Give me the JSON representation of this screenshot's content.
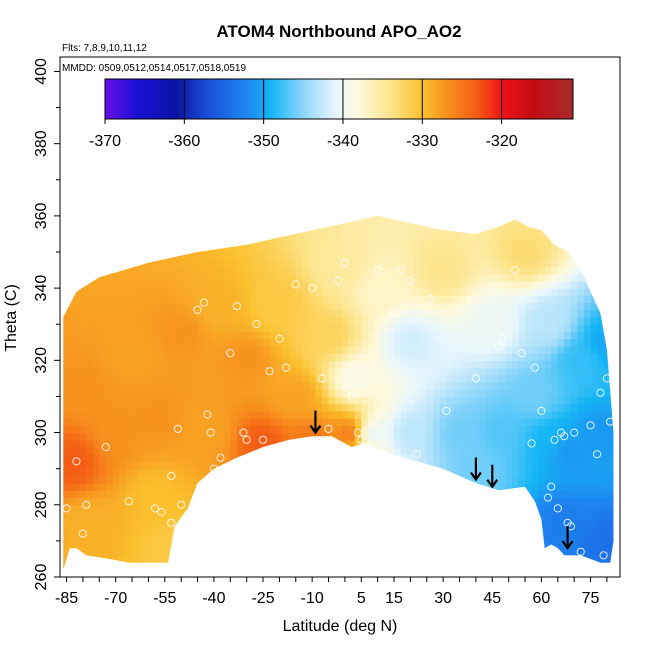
{
  "chart_data": {
    "type": "heatmap",
    "title": "ATOM4 Northbound APO_AO2",
    "subtitle_flights": "Flts: 7,8,9,10,11,12",
    "subtitle_dates": "MMDD: 0509,0512,0514,0517,0518,0519",
    "xlabel": "Latitude (deg N)",
    "ylabel": "Theta (C)",
    "xlim": [
      -87,
      84
    ],
    "ylim": [
      260,
      404
    ],
    "xticks": [
      -85,
      -70,
      -55,
      -40,
      -25,
      -10,
      5,
      15,
      30,
      45,
      60,
      75
    ],
    "yticks": [
      260,
      280,
      300,
      320,
      340,
      360,
      380,
      400
    ],
    "colorbar": {
      "range": [
        -370,
        -311
      ],
      "ticks": [
        -370,
        -360,
        -350,
        -340,
        -330,
        -320
      ],
      "stops": [
        {
          "v": -370,
          "c": "#6a11e8"
        },
        {
          "v": -366,
          "c": "#1a0fd6"
        },
        {
          "v": -361,
          "c": "#0a14a4"
        },
        {
          "v": -357,
          "c": "#1b4fd8"
        },
        {
          "v": -352,
          "c": "#1e88f0"
        },
        {
          "v": -349,
          "c": "#15b6f5"
        },
        {
          "v": -345,
          "c": "#8fd6fa"
        },
        {
          "v": -341,
          "c": "#e6f5fd"
        },
        {
          "v": -338,
          "c": "#fffadd"
        },
        {
          "v": -334,
          "c": "#fde48a"
        },
        {
          "v": -330,
          "c": "#fbc02d"
        },
        {
          "v": -327,
          "c": "#f7931e"
        },
        {
          "v": -323,
          "c": "#f45a14"
        },
        {
          "v": -320,
          "c": "#f0121a"
        },
        {
          "v": -316,
          "c": "#c40c14"
        },
        {
          "v": -311,
          "c": "#a82a2a"
        }
      ]
    },
    "field_anchors": [
      {
        "lat": -83,
        "theta": 292,
        "value": -323
      },
      {
        "lat": -80,
        "theta": 312,
        "value": -327
      },
      {
        "lat": -78,
        "theta": 275,
        "value": -329
      },
      {
        "lat": -70,
        "theta": 300,
        "value": -327
      },
      {
        "lat": -65,
        "theta": 322,
        "value": -328
      },
      {
        "lat": -58,
        "theta": 282,
        "value": -330
      },
      {
        "lat": -57,
        "theta": 305,
        "value": -327
      },
      {
        "lat": -53,
        "theta": 268,
        "value": -331
      },
      {
        "lat": -50,
        "theta": 328,
        "value": -327
      },
      {
        "lat": -42,
        "theta": 300,
        "value": -328
      },
      {
        "lat": -40,
        "theta": 335,
        "value": -329
      },
      {
        "lat": -30,
        "theta": 320,
        "value": -327
      },
      {
        "lat": -25,
        "theta": 297,
        "value": -323
      },
      {
        "lat": -20,
        "theta": 335,
        "value": -331
      },
      {
        "lat": -15,
        "theta": 310,
        "value": -328
      },
      {
        "lat": -10,
        "theta": 298,
        "value": -325
      },
      {
        "lat": -5,
        "theta": 327,
        "value": -332
      },
      {
        "lat": 0,
        "theta": 345,
        "value": -335
      },
      {
        "lat": 2,
        "theta": 300,
        "value": -325
      },
      {
        "lat": 3,
        "theta": 315,
        "value": -339
      },
      {
        "lat": 8,
        "theta": 300,
        "value": -341
      },
      {
        "lat": 10,
        "theta": 340,
        "value": -337
      },
      {
        "lat": 20,
        "theta": 300,
        "value": -343
      },
      {
        "lat": 20,
        "theta": 325,
        "value": -342
      },
      {
        "lat": 30,
        "theta": 345,
        "value": -334
      },
      {
        "lat": 35,
        "theta": 300,
        "value": -346
      },
      {
        "lat": 40,
        "theta": 290,
        "value": -346
      },
      {
        "lat": 45,
        "theta": 330,
        "value": -340
      },
      {
        "lat": 48,
        "theta": 300,
        "value": -347
      },
      {
        "lat": 55,
        "theta": 350,
        "value": -333
      },
      {
        "lat": 58,
        "theta": 310,
        "value": -346
      },
      {
        "lat": 62,
        "theta": 298,
        "value": -349
      },
      {
        "lat": 62,
        "theta": 330,
        "value": -343
      },
      {
        "lat": 66,
        "theta": 275,
        "value": -353
      },
      {
        "lat": 68,
        "theta": 295,
        "value": -351
      },
      {
        "lat": 72,
        "theta": 320,
        "value": -348
      },
      {
        "lat": 78,
        "theta": 300,
        "value": -351
      },
      {
        "lat": 80,
        "theta": 270,
        "value": -354
      },
      {
        "lat": 80,
        "theta": 325,
        "value": -350
      }
    ],
    "valid_region_outline": [
      [
        -86,
        262
      ],
      [
        -84,
        268
      ],
      [
        -82,
        268
      ],
      [
        -79,
        266
      ],
      [
        -72,
        265
      ],
      [
        -66,
        264
      ],
      [
        -54,
        264
      ],
      [
        -52,
        274
      ],
      [
        -48,
        279
      ],
      [
        -45,
        286
      ],
      [
        -40,
        290
      ],
      [
        -33,
        293
      ],
      [
        -25,
        296
      ],
      [
        -17,
        298
      ],
      [
        -10,
        299
      ],
      [
        -4,
        299
      ],
      [
        2,
        296
      ],
      [
        6,
        297
      ],
      [
        14,
        294
      ],
      [
        22,
        292
      ],
      [
        30,
        290
      ],
      [
        40,
        286
      ],
      [
        47,
        284
      ],
      [
        55,
        285
      ],
      [
        58,
        281
      ],
      [
        60,
        276
      ],
      [
        61,
        268
      ],
      [
        63,
        269
      ],
      [
        65,
        268
      ],
      [
        67,
        266
      ],
      [
        72,
        266
      ],
      [
        78,
        264
      ],
      [
        81,
        264
      ],
      [
        82,
        270
      ],
      [
        82,
        300
      ],
      [
        80,
        323
      ],
      [
        78,
        333
      ],
      [
        72,
        345
      ],
      [
        68,
        350
      ],
      [
        64,
        352
      ],
      [
        60,
        356
      ],
      [
        56,
        357
      ],
      [
        52,
        359
      ],
      [
        47,
        357
      ],
      [
        40,
        355
      ],
      [
        30,
        356
      ],
      [
        20,
        358
      ],
      [
        10,
        360
      ],
      [
        0,
        358
      ],
      [
        -15,
        355
      ],
      [
        -30,
        352
      ],
      [
        -45,
        350
      ],
      [
        -60,
        347
      ],
      [
        -75,
        343
      ],
      [
        -82,
        339
      ],
      [
        -86,
        332
      ]
    ],
    "sample_points": [
      [
        -85,
        279
      ],
      [
        -82,
        292
      ],
      [
        -80,
        272
      ],
      [
        -79,
        280
      ],
      [
        -73,
        296
      ],
      [
        -66,
        281
      ],
      [
        -58,
        279
      ],
      [
        -56,
        278
      ],
      [
        -53,
        275
      ],
      [
        -53,
        288
      ],
      [
        -51,
        301
      ],
      [
        -50,
        280
      ],
      [
        -45,
        334
      ],
      [
        -43,
        336
      ],
      [
        -42,
        305
      ],
      [
        -41,
        300
      ],
      [
        -40,
        290
      ],
      [
        -38,
        293
      ],
      [
        -35,
        322
      ],
      [
        -33,
        335
      ],
      [
        -31,
        300
      ],
      [
        -30,
        298
      ],
      [
        -27,
        330
      ],
      [
        -25,
        298
      ],
      [
        -23,
        317
      ],
      [
        -20,
        326
      ],
      [
        -18,
        318
      ],
      [
        -15,
        341
      ],
      [
        -10,
        340
      ],
      [
        -7,
        315
      ],
      [
        -5,
        301
      ],
      [
        -2,
        342
      ],
      [
        0,
        347
      ],
      [
        2,
        310
      ],
      [
        4,
        300
      ],
      [
        5,
        298
      ],
      [
        7,
        296
      ],
      [
        10,
        345
      ],
      [
        12,
        297
      ],
      [
        15,
        333
      ],
      [
        17,
        345
      ],
      [
        20,
        342
      ],
      [
        22,
        294
      ],
      [
        26,
        337
      ],
      [
        31,
        306
      ],
      [
        40,
        315
      ],
      [
        47,
        324
      ],
      [
        48,
        326
      ],
      [
        52,
        345
      ],
      [
        54,
        322
      ],
      [
        57,
        297
      ],
      [
        58,
        318
      ],
      [
        60,
        306
      ],
      [
        62,
        282
      ],
      [
        63,
        285
      ],
      [
        64,
        298
      ],
      [
        65,
        279
      ],
      [
        66,
        300
      ],
      [
        67,
        299
      ],
      [
        68,
        275
      ],
      [
        69,
        274
      ],
      [
        70,
        300
      ],
      [
        72,
        267
      ],
      [
        75,
        302
      ],
      [
        77,
        294
      ],
      [
        78,
        311
      ],
      [
        79,
        266
      ],
      [
        80,
        315
      ],
      [
        81,
        303
      ]
    ],
    "annotations": [
      {
        "type": "down-arrow",
        "lat": -9,
        "theta": 300
      },
      {
        "type": "down-arrow",
        "lat": 40,
        "theta": 287
      },
      {
        "type": "down-arrow",
        "lat": 45,
        "theta": 285
      },
      {
        "type": "down-arrow",
        "lat": 68,
        "theta": 268
      }
    ]
  }
}
